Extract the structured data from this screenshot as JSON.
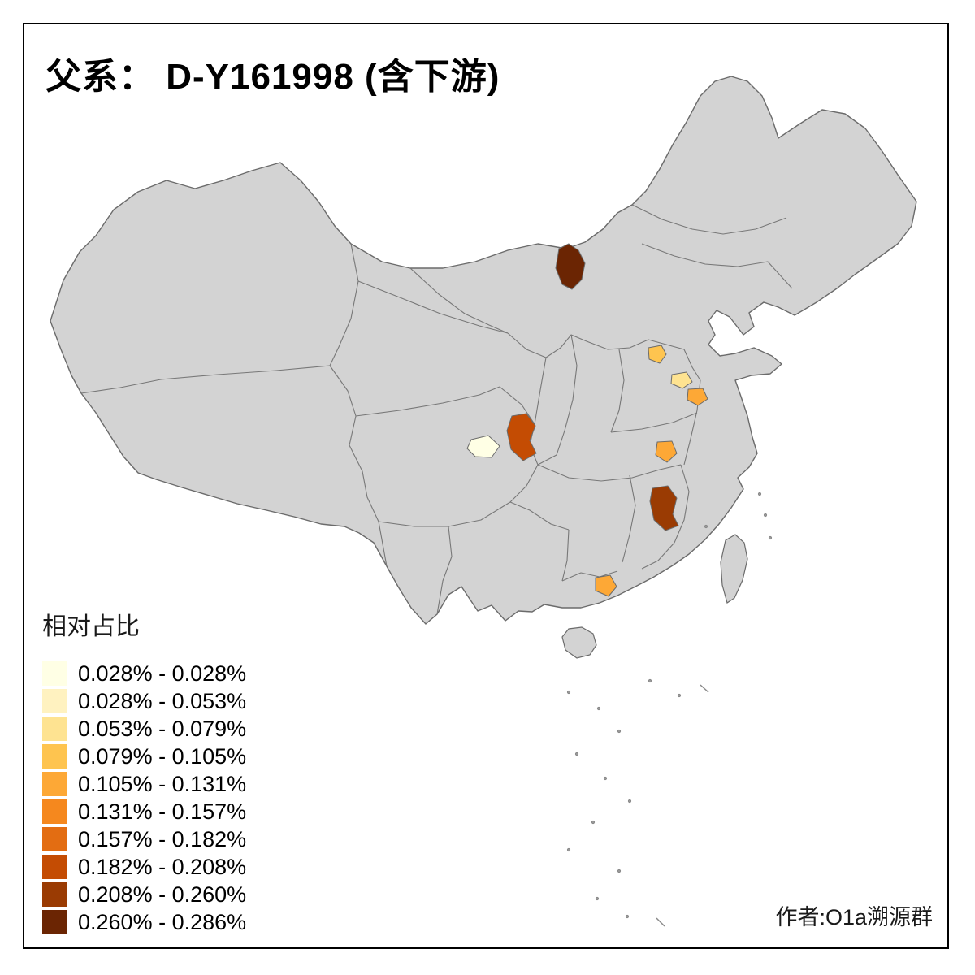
{
  "title": "父系： D-Y161998 (含下游)",
  "author": "作者:O1a溯源群",
  "legend": {
    "title": "相对占比",
    "classes": [
      {
        "label": "0.028% - 0.028%",
        "color": "#FFFFE5"
      },
      {
        "label": "0.028% - 0.053%",
        "color": "#FFF2C0"
      },
      {
        "label": "0.053% - 0.079%",
        "color": "#FEE391"
      },
      {
        "label": "0.079% - 0.105%",
        "color": "#FEC44F"
      },
      {
        "label": "0.105% - 0.131%",
        "color": "#FDA836"
      },
      {
        "label": "0.131% - 0.157%",
        "color": "#F5881E"
      },
      {
        "label": "0.157% - 0.182%",
        "color": "#E36D12"
      },
      {
        "label": "0.182% - 0.208%",
        "color": "#C44C03"
      },
      {
        "label": "0.208% - 0.260%",
        "color": "#9A3B03"
      },
      {
        "label": "0.260% - 0.286%",
        "color": "#6B2503"
      }
    ]
  },
  "map": {
    "base_fill": "#D3D3D3",
    "border_color": "#6E6E6E",
    "regions": [
      {
        "id": "north-inner-mongolia-region",
        "color": "#6B2503",
        "class_label": "0.260% - 0.286%"
      },
      {
        "id": "north-china-plain-upper-region",
        "color": "#FEC44F",
        "class_label": "0.079% - 0.105%"
      },
      {
        "id": "central-plain-pale-region",
        "color": "#FEE391",
        "class_label": "0.053% - 0.079%"
      },
      {
        "id": "central-plain-orange-region",
        "color": "#FDA836",
        "class_label": "0.105% - 0.131%"
      },
      {
        "id": "southwest-dark-orange-region",
        "color": "#C44C03",
        "class_label": "0.182% - 0.208%"
      },
      {
        "id": "sichuan-cream-region",
        "color": "#FFFFE5",
        "class_label": "0.028% - 0.028%"
      },
      {
        "id": "central-yangtze-orange-region",
        "color": "#FDA836",
        "class_label": "0.105% - 0.131%"
      },
      {
        "id": "southeast-dark-brown-region",
        "color": "#9A3B03",
        "class_label": "0.208% - 0.260%"
      },
      {
        "id": "south-coast-orange-region",
        "color": "#FDA836",
        "class_label": "0.105% - 0.131%"
      }
    ]
  }
}
